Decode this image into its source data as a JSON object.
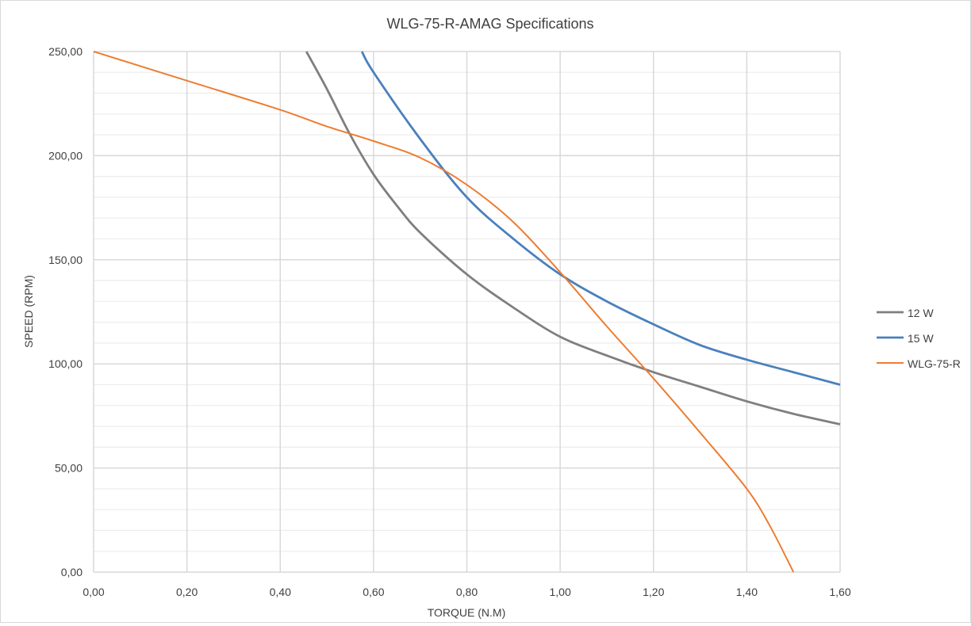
{
  "chart_data": {
    "type": "line",
    "title": "WLG-75-R-AMAG Specifications",
    "xlabel": "TORQUE (N.M)",
    "ylabel": "SPEED (RPM)",
    "xlim": [
      0,
      1.6
    ],
    "ylim": [
      0,
      250
    ],
    "x_ticks": [
      "0,00",
      "0,20",
      "0,40",
      "0,60",
      "0,80",
      "1,00",
      "1,20",
      "1,40",
      "1,60"
    ],
    "y_ticks": [
      "0,00",
      "50,00",
      "100,00",
      "150,00",
      "200,00",
      "250,00"
    ],
    "x_tick_values": [
      0,
      0.2,
      0.4,
      0.6,
      0.8,
      1.0,
      1.2,
      1.4,
      1.6
    ],
    "y_tick_values": [
      0,
      50,
      100,
      150,
      200,
      250
    ],
    "y_minor_step": 10,
    "grid": true,
    "legend_position": "right",
    "series": [
      {
        "name": "12 W",
        "color": "#7f7f7f",
        "x": [
          0.456,
          0.5,
          0.55,
          0.6,
          0.65,
          0.7,
          0.8,
          0.9,
          1.0,
          1.1,
          1.2,
          1.3,
          1.4,
          1.5,
          1.6
        ],
        "y": [
          250,
          232,
          210,
          191,
          176,
          163,
          143,
          127,
          113,
          104,
          96,
          89,
          82,
          76,
          71
        ]
      },
      {
        "name": "15 W",
        "color": "#4a80bd",
        "x": [
          0.575,
          0.6,
          0.7,
          0.8,
          0.9,
          1.0,
          1.1,
          1.2,
          1.3,
          1.4,
          1.5,
          1.6
        ],
        "y": [
          250,
          240,
          208,
          180,
          160,
          143,
          130,
          119,
          109,
          102,
          96,
          90
        ]
      },
      {
        "name": "WLG-75-R",
        "color": "#ed7d31",
        "x": [
          0,
          0.2,
          0.4,
          0.5,
          0.6,
          0.7,
          0.8,
          0.9,
          1.0,
          1.1,
          1.2,
          1.3,
          1.4,
          1.45,
          1.5
        ],
        "y": [
          250,
          236,
          222,
          214,
          207,
          199,
          186,
          168,
          144,
          118,
          93,
          67,
          40,
          22,
          0
        ]
      }
    ]
  }
}
